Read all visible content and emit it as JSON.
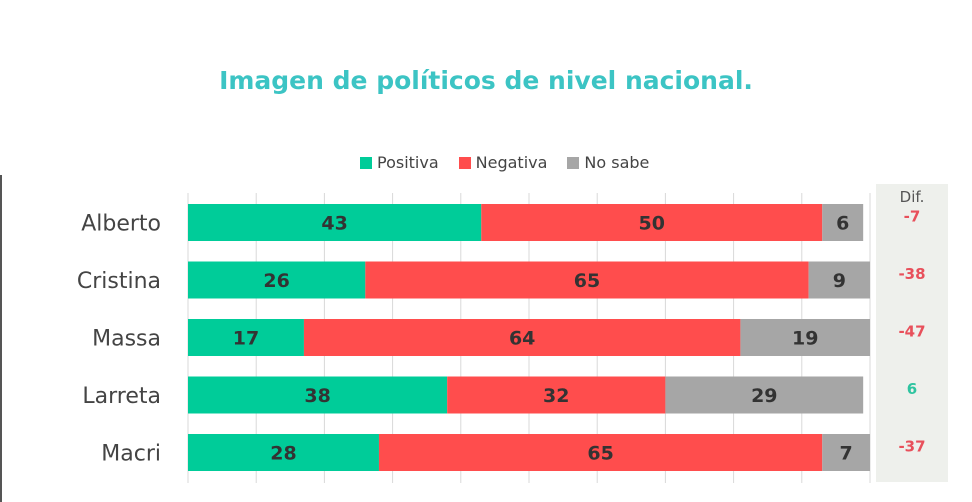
{
  "chart_data": {
    "type": "bar",
    "orientation": "horizontal",
    "stacked": true,
    "title": "Imagen de políticos de nivel nacional.",
    "categories": [
      "Alberto",
      "Cristina",
      "Massa",
      "Larreta",
      "Macri"
    ],
    "series": [
      {
        "name": "Positiva",
        "color": "#00cc99",
        "values": [
          43,
          26,
          17,
          38,
          28
        ]
      },
      {
        "name": "Negativa",
        "color": "#ff4d4d",
        "values": [
          50,
          65,
          64,
          32,
          65
        ]
      },
      {
        "name": "No sabe",
        "color": "#a6a6a6",
        "values": [
          6,
          9,
          19,
          29,
          7
        ]
      }
    ],
    "xlim": [
      0,
      100
    ],
    "grid": true,
    "legend_position": "top",
    "dif": {
      "label": "Dif.",
      "values": [
        "-7",
        "-38",
        "-47",
        "6",
        "-37"
      ],
      "positive_color": "#2ec4a0",
      "negative_color": "#e8505b"
    }
  }
}
